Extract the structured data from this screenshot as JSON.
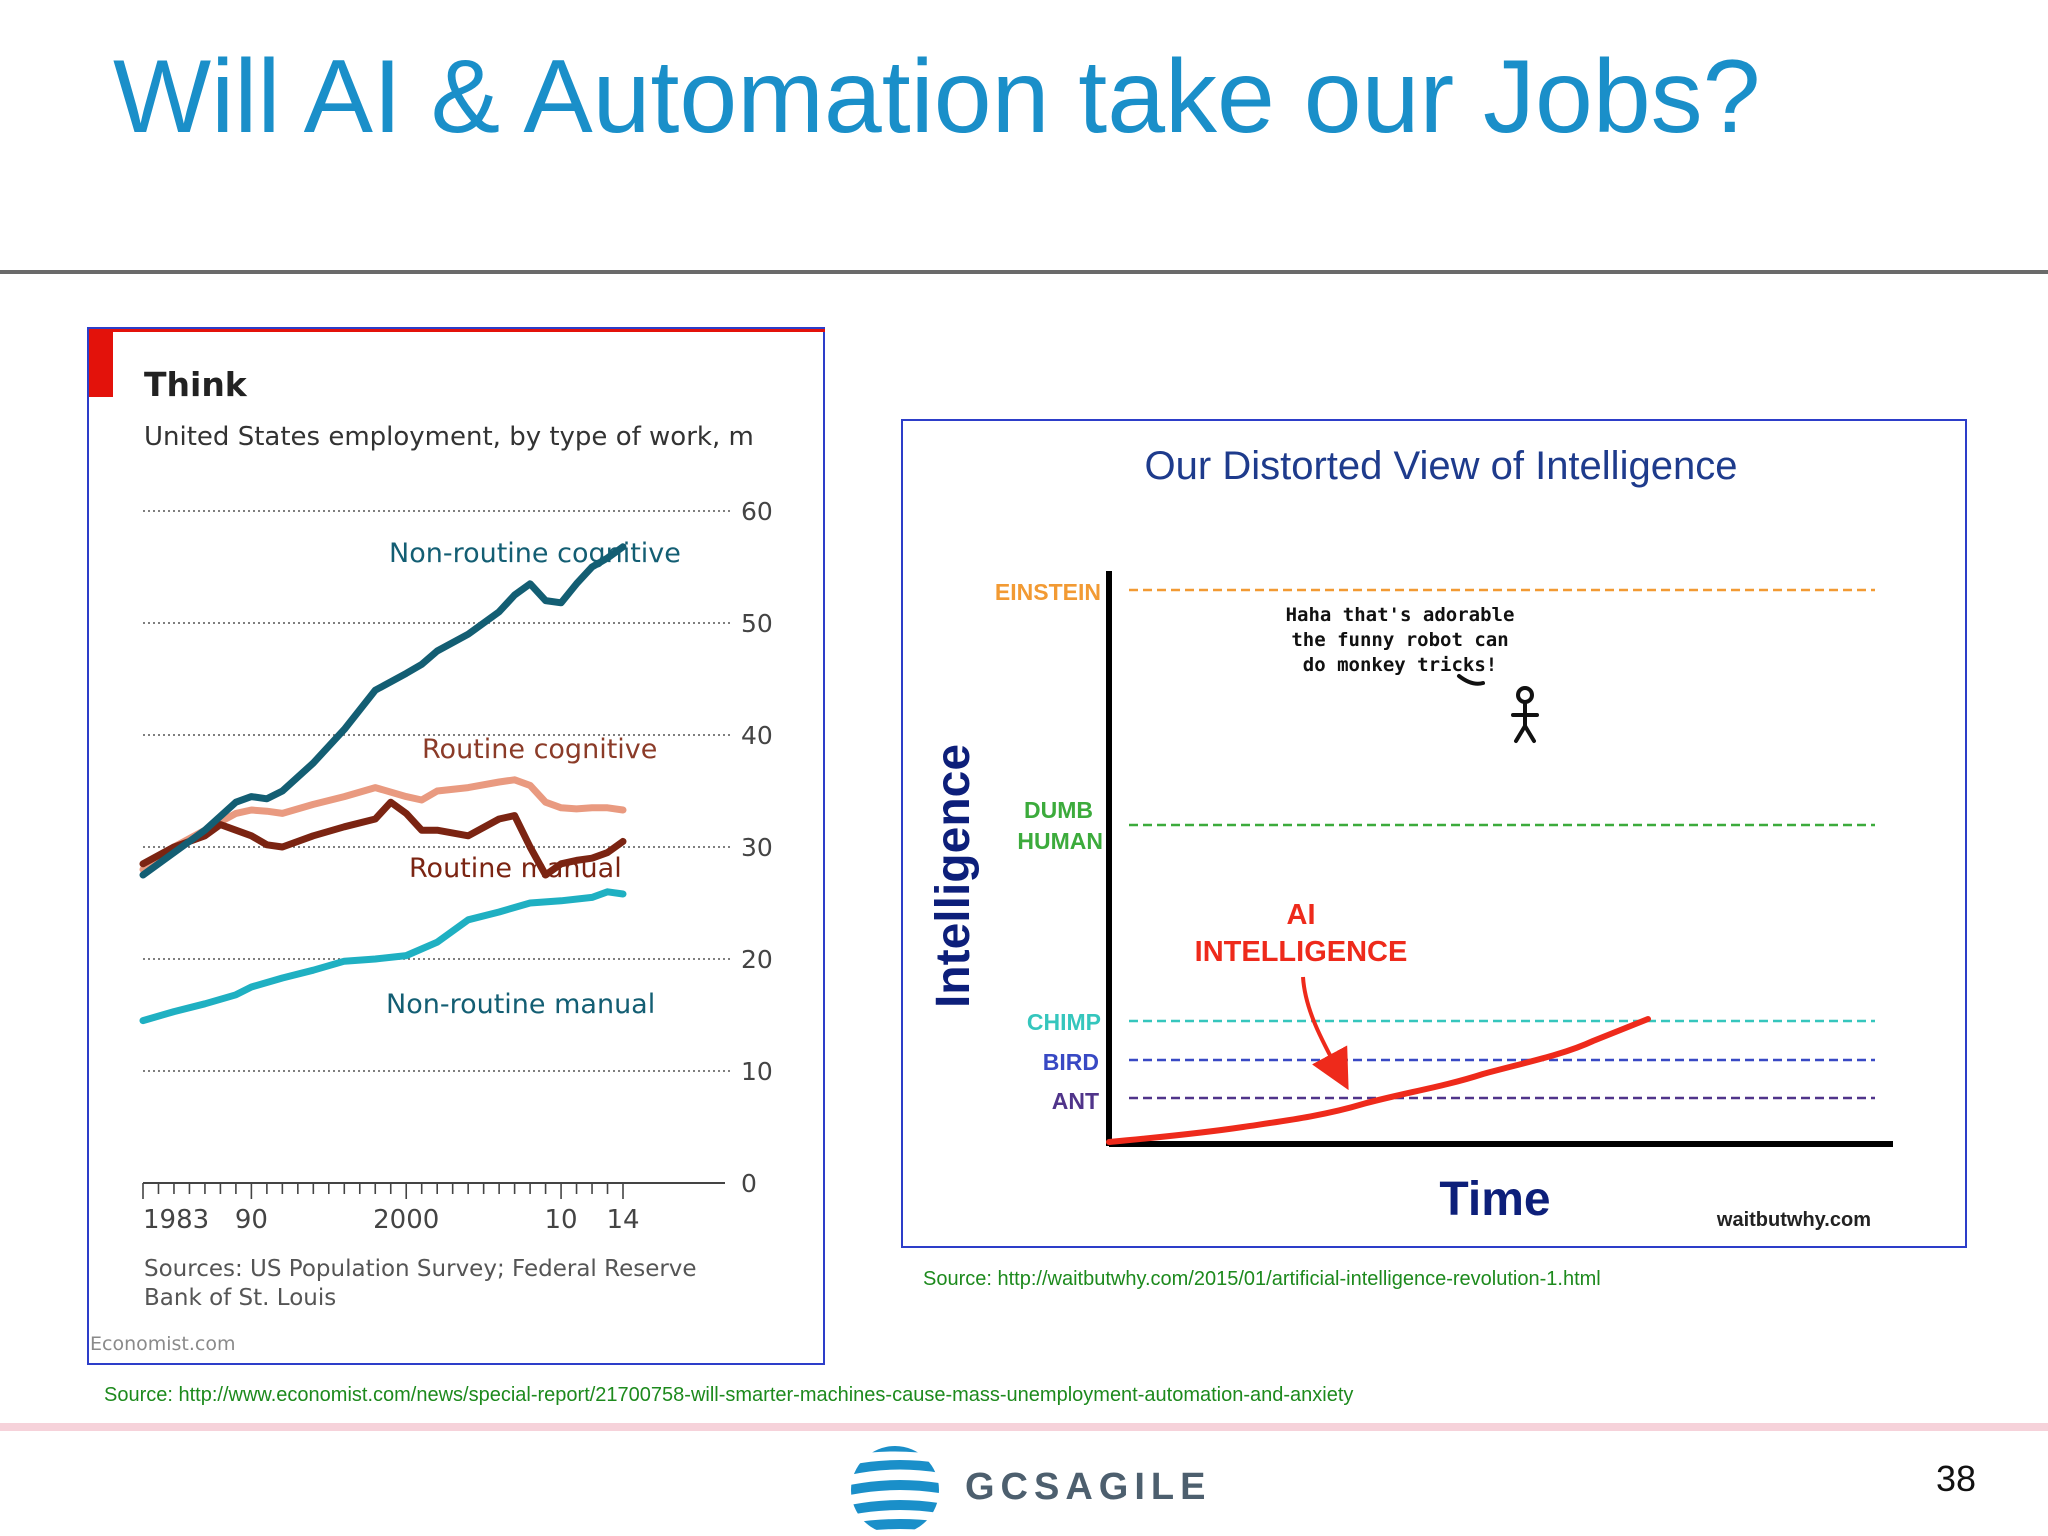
{
  "slide": {
    "title": "Will AI & Automation take our Jobs?",
    "page_number": "38",
    "logo_text": "GCSAGILE",
    "source_left": "Source: http://www.economist.com/news/special-report/21700758-will-smarter-machines-cause-mass-unemployment-automation-and-anxiety",
    "source_right": "Source: http://waitbutwhy.com/2015/01/artificial-intelligence-revolution-1.html"
  },
  "colors": {
    "title": "#1a8fc9",
    "non_routine_cognitive": "#135e73",
    "routine_cognitive": "#e99a80",
    "routine_manual": "#7b2412",
    "non_routine_manual": "#1fb0c2"
  },
  "chart_data": [
    {
      "type": "line",
      "title": "Think",
      "subtitle": "United States employment, by type of work, m",
      "x_tick_labels": [
        "1983",
        "90",
        "2000",
        "10",
        "14"
      ],
      "x_tick_values": [
        1983,
        1990,
        2000,
        2010,
        2014
      ],
      "xlim": [
        1983,
        2014
      ],
      "ylim": [
        0,
        60
      ],
      "y_ticks": [
        0,
        10,
        20,
        30,
        40,
        50,
        60
      ],
      "grid": true,
      "y_axis_side": "right",
      "series": [
        {
          "name": "Non-routine cognitive",
          "color": "#135e73",
          "x": [
            1983,
            1985,
            1987,
            1989,
            1990,
            1991,
            1992,
            1994,
            1996,
            1998,
            2000,
            2001,
            2002,
            2004,
            2006,
            2007,
            2008,
            2009,
            2010,
            2011,
            2012,
            2013,
            2014
          ],
          "y": [
            27.5,
            29.5,
            31.5,
            34.0,
            34.5,
            34.3,
            35.0,
            37.5,
            40.5,
            44.0,
            45.5,
            46.3,
            47.5,
            49.0,
            51.0,
            52.5,
            53.5,
            52.0,
            51.8,
            53.5,
            55.0,
            55.8,
            56.8
          ]
        },
        {
          "name": "Routine cognitive",
          "color": "#e99a80",
          "x": [
            1983,
            1985,
            1987,
            1989,
            1990,
            1991,
            1992,
            1994,
            1996,
            1998,
            2000,
            2001,
            2002,
            2004,
            2006,
            2007,
            2008,
            2009,
            2010,
            2011,
            2012,
            2013,
            2014
          ],
          "y": [
            28.0,
            30.0,
            31.5,
            33.0,
            33.3,
            33.2,
            33.0,
            33.8,
            34.5,
            35.3,
            34.5,
            34.2,
            35.0,
            35.3,
            35.8,
            36.0,
            35.5,
            34.0,
            33.5,
            33.4,
            33.5,
            33.5,
            33.3
          ]
        },
        {
          "name": "Routine manual",
          "color": "#7b2412",
          "x": [
            1983,
            1985,
            1987,
            1988,
            1989,
            1990,
            1991,
            1992,
            1994,
            1996,
            1998,
            1999,
            2000,
            2001,
            2002,
            2004,
            2006,
            2007,
            2008,
            2009,
            2010,
            2011,
            2012,
            2013,
            2014
          ],
          "y": [
            28.5,
            30.0,
            31.0,
            32.0,
            31.5,
            31.0,
            30.2,
            30.0,
            31.0,
            31.8,
            32.5,
            34.0,
            33.0,
            31.5,
            31.5,
            31.0,
            32.5,
            32.8,
            30.0,
            27.5,
            28.5,
            28.8,
            29.0,
            29.5,
            30.5
          ]
        },
        {
          "name": "Non-routine manual",
          "color": "#1fb0c2",
          "x": [
            1983,
            1985,
            1987,
            1989,
            1990,
            1992,
            1994,
            1996,
            1998,
            2000,
            2002,
            2004,
            2006,
            2008,
            2010,
            2012,
            2013,
            2014
          ],
          "y": [
            14.5,
            15.3,
            16.0,
            16.8,
            17.5,
            18.3,
            19.0,
            19.8,
            20.0,
            20.3,
            21.5,
            23.5,
            24.2,
            25.0,
            25.2,
            25.5,
            26.0,
            25.8
          ]
        }
      ],
      "sources_line1": "Sources: US Population Survey; Federal Reserve",
      "sources_line2": "Bank of St. Louis",
      "credit": "Economist.com"
    },
    {
      "type": "diagram",
      "title": "Our Distorted View of Intelligence",
      "xlabel": "Time",
      "ylabel": "Intelligence",
      "levels": [
        {
          "label": "EINSTEIN",
          "color": "#f29a33"
        },
        {
          "label_line1": "DUMB",
          "label_line2": "HUMAN",
          "color": "#3cab3c"
        },
        {
          "label": "CHIMP",
          "color": "#35c6bd"
        },
        {
          "label": "BIRD",
          "color": "#3849c4"
        },
        {
          "label": "ANT",
          "color": "#50348a"
        }
      ],
      "ai_label_line1": "AI",
      "ai_label_line2": "INTELLIGENCE",
      "ai_color": "#ee2a1b",
      "speech_line1": "Haha that's adorable",
      "speech_line2": "the funny robot can",
      "speech_line3": "do monkey tricks!",
      "credit": "waitbutwhy.com"
    }
  ]
}
